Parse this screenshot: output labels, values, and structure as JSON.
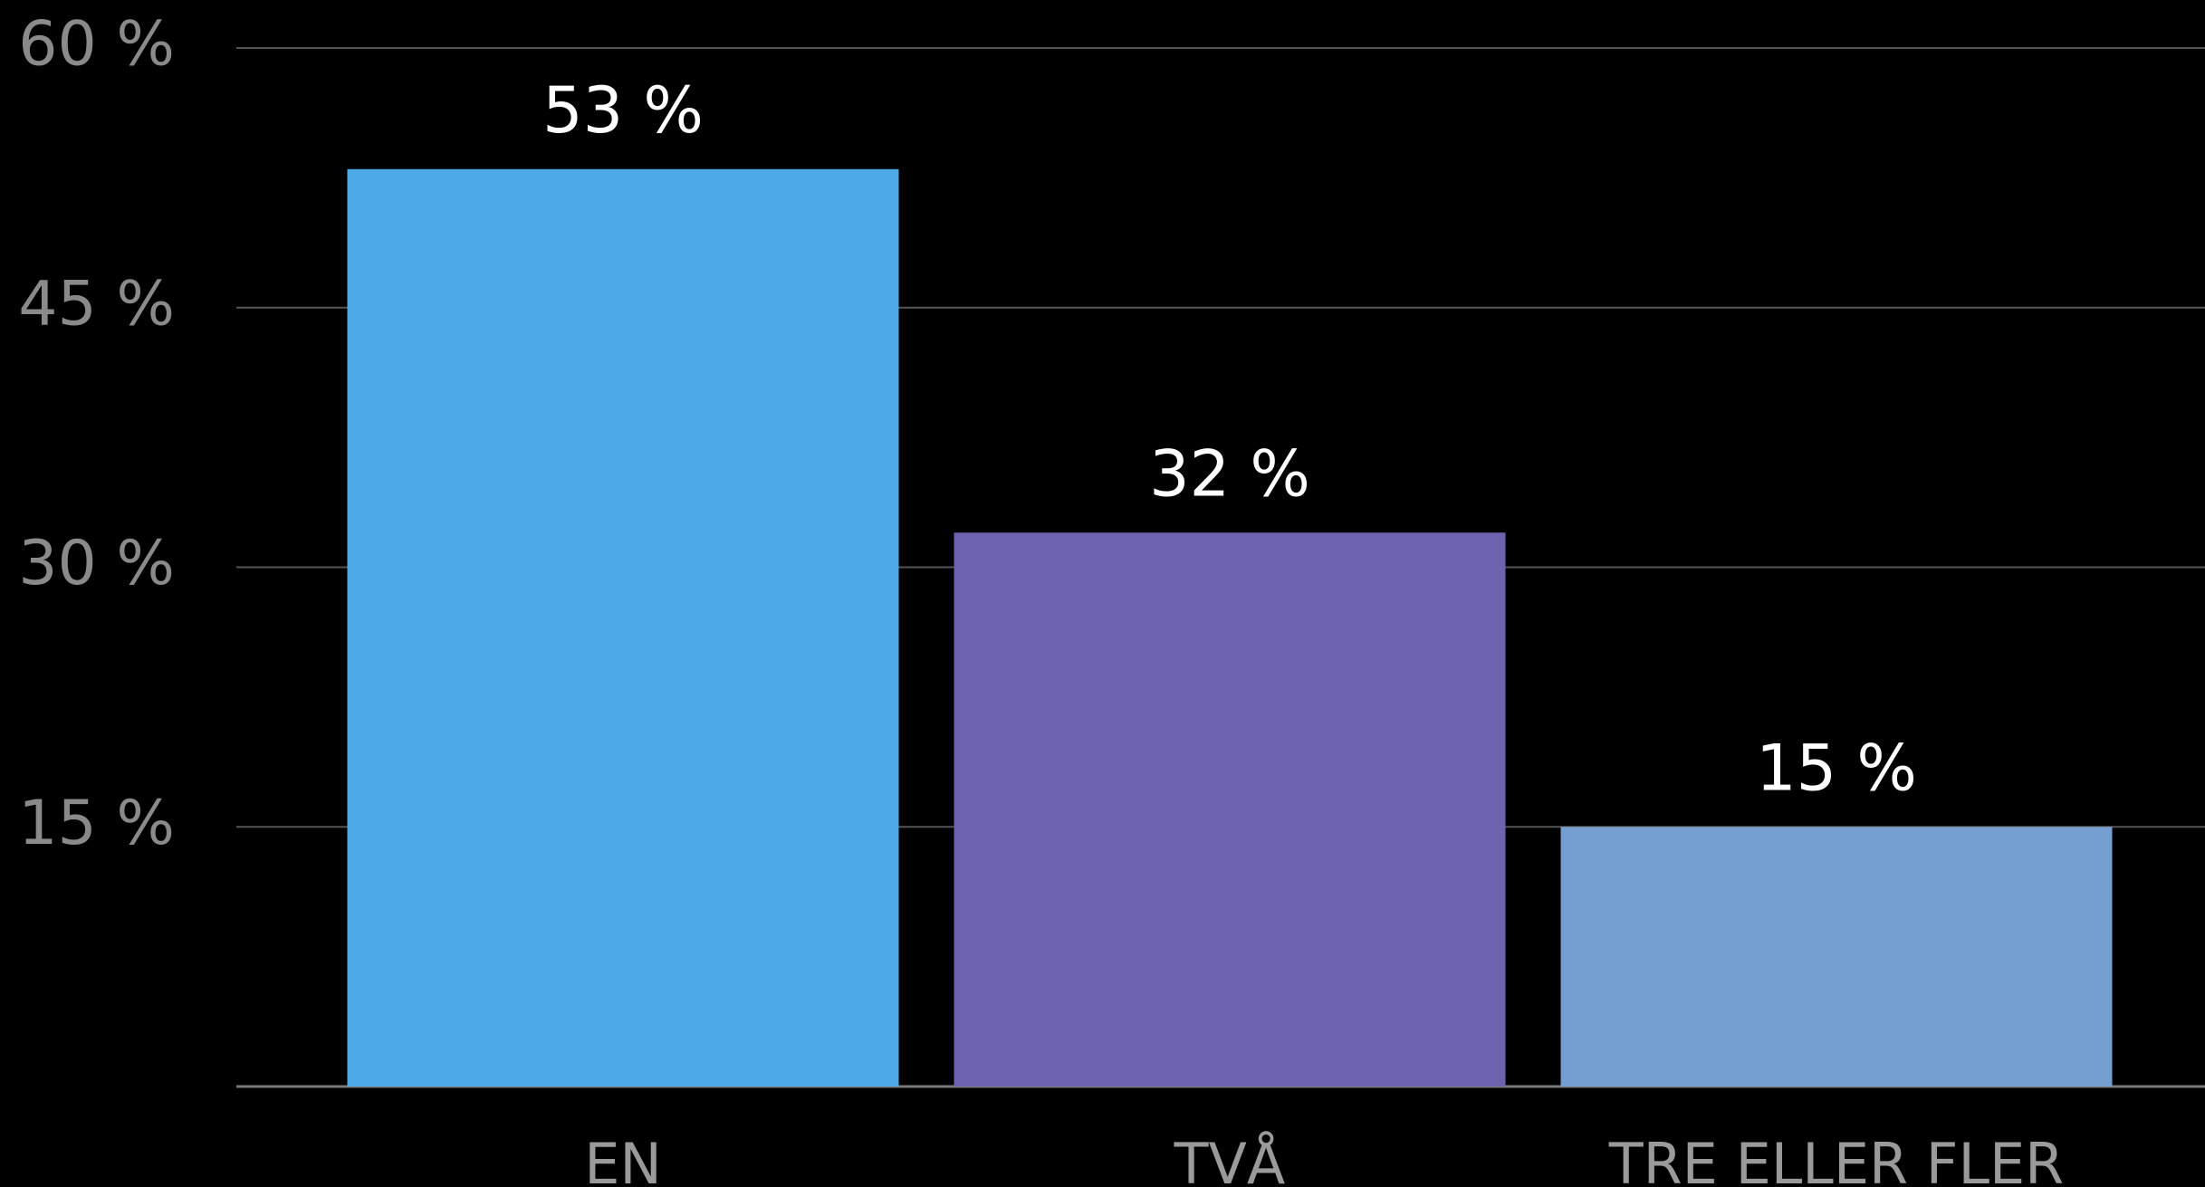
{
  "chart_data": {
    "type": "bar",
    "categories": [
      "EN",
      "TVÅ",
      "TRE ELLER FLER"
    ],
    "values": [
      53,
      32,
      15
    ],
    "value_labels": [
      "53 %",
      "32 %",
      "15 %"
    ],
    "colors": [
      "#4da9e8",
      "#6c63b0",
      "#769fd1"
    ],
    "ylim": [
      0,
      60
    ],
    "yticks": [
      {
        "value": 15,
        "label": "15 %"
      },
      {
        "value": 30,
        "label": "30 %"
      },
      {
        "value": 45,
        "label": "45 %"
      },
      {
        "value": 60,
        "label": "60 %"
      }
    ],
    "grid": true
  }
}
